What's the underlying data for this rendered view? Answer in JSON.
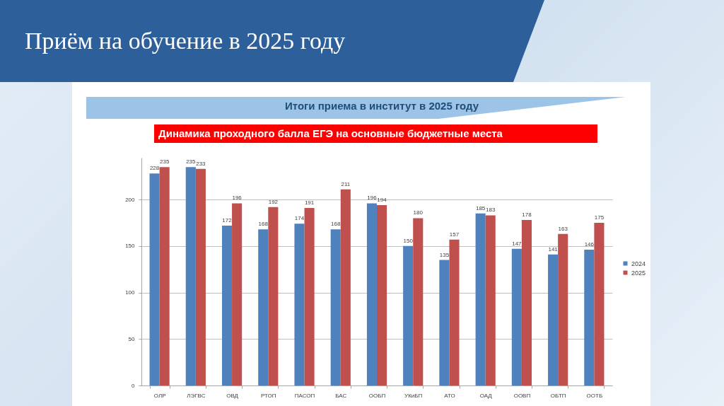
{
  "chart_data": {
    "type": "bar",
    "title": "Приём на обучение в 2025 году",
    "subtitle": "Итоги приема в институт в 2025 году",
    "annotations": [
      "Динамика проходного балла ЕГЭ на основные бюджетные места"
    ],
    "categories": [
      "ОЛР",
      "ЛЭГВС",
      "ОВД",
      "РТОП",
      "ПАСОП",
      "БАС",
      "ООБП",
      "УКиБП",
      "АТО",
      "ОАД",
      "ООВП",
      "ОБТП",
      "ООТБ"
    ],
    "series": [
      {
        "name": "2024",
        "color": "#4f81bd",
        "values": [
          228,
          235,
          172,
          168,
          174,
          168,
          196,
          150,
          135,
          185,
          147,
          141,
          146
        ]
      },
      {
        "name": "2025",
        "color": "#c0504d",
        "values": [
          235,
          233,
          196,
          192,
          191,
          211,
          194,
          180,
          157,
          183,
          178,
          163,
          175
        ]
      }
    ],
    "ylim": [
      0,
      245
    ],
    "yticks": [
      0,
      50,
      100,
      150,
      200
    ],
    "grid": "y",
    "legend": "right",
    "data_labels": true
  }
}
